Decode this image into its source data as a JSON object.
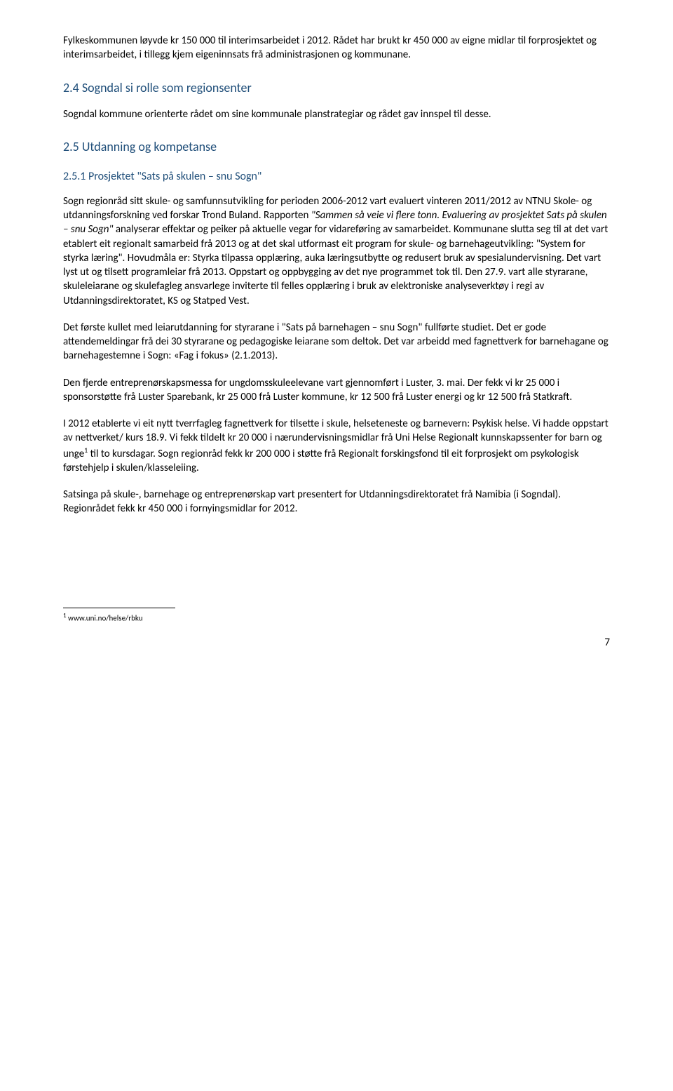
{
  "p1": "Fylkeskommunen løyvde kr 150 000 til interimsarbeidet i 2012. Rådet har brukt kr 450 000 av eigne midlar til forprosjektet og interimsarbeidet, i tillegg kjem eigeninnsats frå administrasjonen og kommunane.",
  "h2_4": "2.4   Sogndal si rolle som regionsenter",
  "p2": "Sogndal kommune orienterte rådet om sine kommunale planstrategiar og rådet gav innspel til desse.",
  "h2_5": "2.5   Utdanning og kompetanse",
  "h3_51": "2.5.1   Prosjektet \"Sats på skulen – snu Sogn\"",
  "p3a": "Sogn regionråd sitt skule- og samfunnsutvikling for perioden 2006-2012 vart evaluert vinteren 2011/2012 av NTNU Skole- og utdanningsforskning ved forskar Trond Buland. Rapporten ",
  "p3_italic": "\"Sammen så veie vi flere tonn. Evaluering av prosjektet Sats på skulen – snu Sogn\"",
  "p3b": " analyserar effektar og peiker på aktuelle vegar for vidareføring av samarbeidet. Kommunane slutta seg til at det vart etablert eit regionalt samarbeid frå 2013 og at det skal utformast eit program for skule- og barnehageutvikling: \"System for styrka læring\". Hovudmåla er: Styrka tilpassa opplæring, auka læringsutbytte og redusert bruk av spesialundervisning. Det vart lyst ut og tilsett programleiar frå 2013. Oppstart og oppbygging av det nye programmet tok til. Den 27.9. vart alle styrarane, skuleleiarane og skulefagleg ansvarlege inviterte til felles opplæring i bruk av elektroniske analyseverktøy i regi av Utdanningsdirektoratet, KS og Statped Vest.",
  "p4": "Det første kullet med leiarutdanning for styrarane i \"Sats på barnehagen – snu Sogn\" fullførte studiet. Det er gode attendemeldingar frå dei 30 styrarane og pedagogiske leiarane som deltok. Det var arbeidd med fagnettverk for barnehagane og barnehagestemne i Sogn: «Fag i fokus» (2.1.2013).",
  "p5": "Den fjerde entreprenørskapsmessa for ungdomsskuleelevane vart gjennomført i Luster, 3. mai. Der fekk vi kr 25 000 i sponsorstøtte frå Luster Sparebank, kr 25 000 frå Luster kommune, kr 12 500 frå Luster energi og kr 12 500 frå Statkraft.",
  "p6a": "I 2012 etablerte vi eit nytt tverrfagleg fagnettverk for tilsette i skule, helseteneste og barnevern: Psykisk helse. Vi hadde oppstart av nettverket/ kurs 18.9.  Vi fekk tildelt kr 20 000 i nærundervisningsmidlar frå Uni Helse Regionalt kunnskapssenter for barn og unge",
  "p6b": " til to kursdagar.  Sogn regionråd fekk kr 200 000 i støtte frå Regionalt forskingsfond til eit forprosjekt om psykologisk førstehjelp i skulen/klasseleiing.",
  "p7": "Satsinga på skule-, barnehage og entreprenørskap vart presentert for Utdanningsdirektoratet frå Namibia (i Sogndal). Regionrådet fekk kr 450 000 i fornyingsmidlar for 2012.",
  "footnote_mark": "1",
  "footnote_text": " www.uni.no/helse/rbku",
  "page_number": "7"
}
